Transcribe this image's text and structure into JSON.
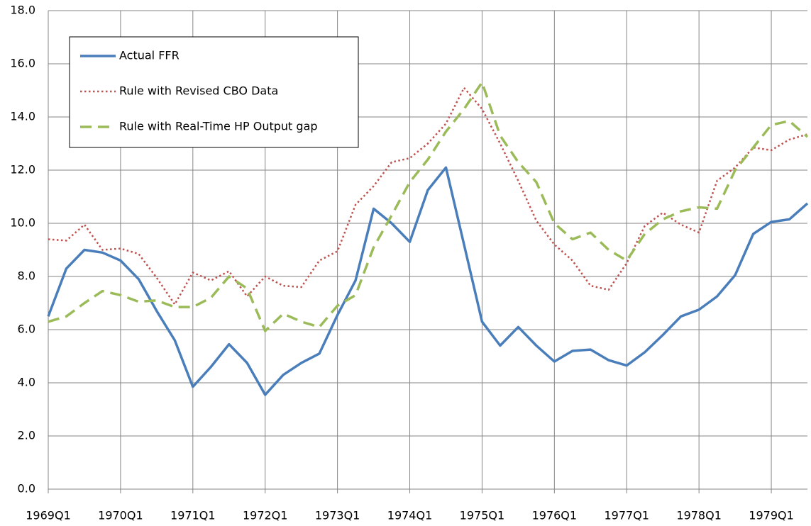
{
  "chart_data": {
    "type": "line",
    "categories": [
      "1969Q1",
      null,
      null,
      null,
      "1970Q1",
      null,
      null,
      null,
      "1971Q1",
      null,
      null,
      null,
      "1972Q1",
      null,
      null,
      null,
      "1973Q1",
      null,
      null,
      null,
      "1974Q1",
      null,
      null,
      null,
      "1975Q1",
      null,
      null,
      null,
      "1976Q1",
      null,
      null,
      null,
      "1977Q1",
      null,
      null,
      null,
      "1978Q1",
      null,
      null,
      null,
      "1979Q1",
      null,
      null
    ],
    "series": [
      {
        "name": "Actual FFR",
        "color": "#4a7ebb",
        "style": "solid",
        "values": [
          6.5,
          8.3,
          9.0,
          8.9,
          8.6,
          7.9,
          6.7,
          5.6,
          3.85,
          4.6,
          5.45,
          4.75,
          3.55,
          4.3,
          4.75,
          5.1,
          6.55,
          7.85,
          10.55,
          10.0,
          9.3,
          11.25,
          12.1,
          9.2,
          6.3,
          5.4,
          6.1,
          5.4,
          4.8,
          5.2,
          5.25,
          4.85,
          4.65,
          5.15,
          5.8,
          6.5,
          6.75,
          7.25,
          8.05,
          9.6,
          10.05,
          10.15,
          10.75
        ]
      },
      {
        "name": "Rule with Revised CBO Data",
        "color": "#c0504d",
        "style": "dotted",
        "values": [
          9.4,
          9.35,
          9.95,
          9.0,
          9.05,
          8.85,
          7.95,
          6.95,
          8.15,
          7.85,
          8.2,
          7.25,
          8.0,
          7.65,
          7.6,
          8.6,
          8.95,
          10.7,
          11.4,
          12.3,
          12.45,
          13.0,
          13.75,
          15.1,
          14.3,
          13.0,
          11.6,
          10.1,
          9.2,
          8.6,
          7.65,
          7.5,
          8.5,
          9.9,
          10.4,
          9.95,
          9.65,
          11.6,
          12.1,
          12.85,
          12.75,
          13.15,
          13.35
        ]
      },
      {
        "name": "Rule with Real-Time HP Output gap",
        "color": "#9bbb59",
        "style": "dashed",
        "values": [
          6.3,
          6.5,
          7.0,
          7.45,
          7.3,
          7.05,
          7.1,
          6.85,
          6.85,
          7.2,
          8.0,
          7.55,
          5.95,
          6.6,
          6.3,
          6.1,
          6.9,
          7.3,
          9.1,
          10.3,
          11.55,
          12.4,
          13.45,
          14.3,
          15.3,
          13.3,
          12.3,
          11.55,
          10.0,
          9.4,
          9.65,
          9.0,
          8.6,
          9.6,
          10.15,
          10.45,
          10.6,
          10.55,
          12.0,
          12.85,
          13.7,
          13.85,
          13.25
        ]
      }
    ],
    "ylim": [
      0,
      18
    ],
    "yticks": [
      {
        "value": 0,
        "label": "0.0"
      },
      {
        "value": 2,
        "label": "2.0"
      },
      {
        "value": 4,
        "label": "4.0"
      },
      {
        "value": 6,
        "label": "6.0"
      },
      {
        "value": 8,
        "label": "8.0"
      },
      {
        "value": 10,
        "label": "10.0"
      },
      {
        "value": 12,
        "label": "12.0"
      },
      {
        "value": 14,
        "label": "14.0"
      },
      {
        "value": 16,
        "label": "16.0"
      },
      {
        "value": 18,
        "label": "18.0"
      }
    ],
    "grid": true,
    "legend": "upper left"
  }
}
